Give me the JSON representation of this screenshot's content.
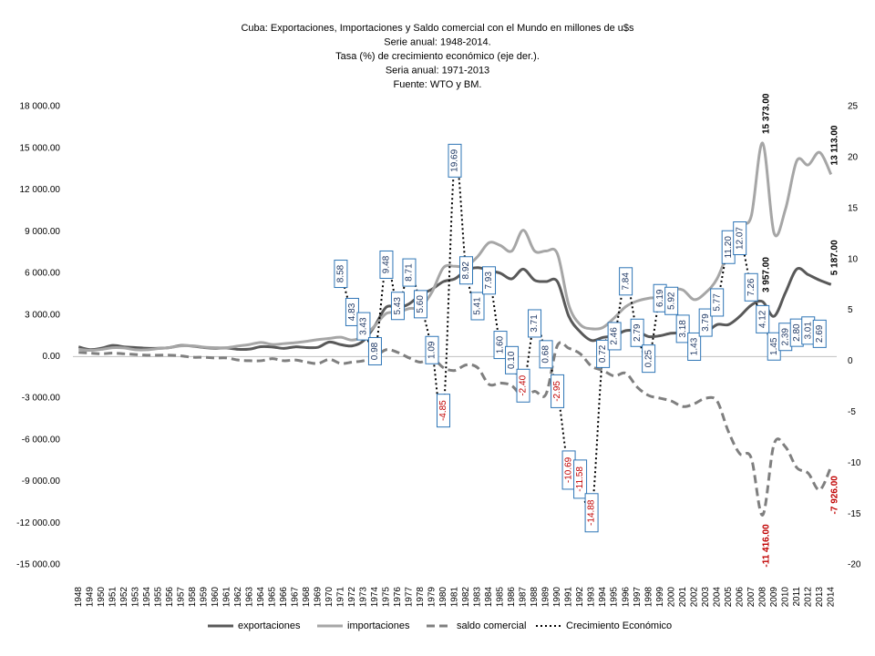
{
  "chart_data": {
    "type": "line",
    "title": [
      "Cuba: Exportaciones, Importaciones y Saldo comercial con el Mundo en millones de u$s",
      "Serie anual: 1948-2014.",
      "Tasa (%) de crecimiento económico (eje der.).",
      "Seria anual: 1971-2013",
      "Fuente: WTO y BM."
    ],
    "categories": [
      "1948",
      "1949",
      "1950",
      "1951",
      "1952",
      "1953",
      "1954",
      "1955",
      "1956",
      "1957",
      "1958",
      "1959",
      "1960",
      "1961",
      "1962",
      "1963",
      "1964",
      "1965",
      "1966",
      "1967",
      "1968",
      "1969",
      "1970",
      "1971",
      "1972",
      "1973",
      "1974",
      "1975",
      "1976",
      "1977",
      "1978",
      "1979",
      "1980",
      "1981",
      "1982",
      "1983",
      "1984",
      "1985",
      "1986",
      "1987",
      "1988",
      "1989",
      "1990",
      "1991",
      "1992",
      "1993",
      "1994",
      "1995",
      "1996",
      "1997",
      "1998",
      "1999",
      "2000",
      "2001",
      "2002",
      "2003",
      "2004",
      "2005",
      "2006",
      "2007",
      "2008",
      "2009",
      "2010",
      "2011",
      "2012",
      "2013",
      "2014"
    ],
    "ylim": [
      -15000,
      18000
    ],
    "yticks": [
      {
        "value": -15000,
        "label": "-15 000.00"
      },
      {
        "value": -12000,
        "label": "-12 000.00"
      },
      {
        "value": -9000,
        "label": "-9 000.00"
      },
      {
        "value": -6000,
        "label": "-6 000.00"
      },
      {
        "value": -3000,
        "label": "-3 000.00"
      },
      {
        "value": 0,
        "label": "0.00"
      },
      {
        "value": 3000,
        "label": "3 000.00"
      },
      {
        "value": 6000,
        "label": "6 000.00"
      },
      {
        "value": 9000,
        "label": "9 000.00"
      },
      {
        "value": 12000,
        "label": "12 000.00"
      },
      {
        "value": 15000,
        "label": "15 000.00"
      },
      {
        "value": 18000,
        "label": "18 000.00"
      }
    ],
    "y2lim": [
      -20,
      25
    ],
    "y2ticks": [
      -20,
      -15,
      -10,
      -5,
      0,
      5,
      10,
      15,
      20,
      25
    ],
    "legend": "bottom",
    "series": [
      {
        "name": "exportaciones",
        "color": "#595959",
        "dash": "solid",
        "values": [
          700,
          500,
          600,
          800,
          700,
          650,
          600,
          600,
          650,
          800,
          750,
          650,
          600,
          620,
          520,
          540,
          710,
          690,
          590,
          700,
          650,
          670,
          1050,
          860,
          770,
          1150,
          2240,
          3570,
          3500,
          3800,
          4450,
          4850,
          5400,
          5600,
          6200,
          6400,
          6200,
          6000,
          5600,
          6300,
          5500,
          5400,
          5400,
          2900,
          1780,
          1160,
          1380,
          1500,
          1870,
          1820,
          1440,
          1500,
          1680,
          1660,
          1420,
          1700,
          2300,
          2300,
          2900,
          3700,
          3957,
          2900,
          4600,
          6300,
          5900,
          5500,
          5187
        ],
        "value_labels": [
          null,
          null,
          null,
          null,
          null,
          null,
          null,
          null,
          null,
          null,
          null,
          null,
          null,
          null,
          null,
          null,
          null,
          null,
          null,
          null,
          null,
          null,
          null,
          null,
          null,
          null,
          null,
          null,
          null,
          null,
          null,
          null,
          null,
          null,
          null,
          null,
          null,
          null,
          null,
          null,
          null,
          null,
          null,
          null,
          null,
          null,
          null,
          null,
          null,
          null,
          null,
          null,
          null,
          null,
          null,
          null,
          null,
          null,
          null,
          null,
          "3 957.00",
          null,
          null,
          null,
          null,
          null,
          "5 187.00"
        ]
      },
      {
        "name": "importaciones",
        "color": "#a6a6a6",
        "dash": "solid",
        "values": [
          530,
          450,
          520,
          640,
          620,
          490,
          490,
          580,
          650,
          770,
          780,
          680,
          640,
          640,
          760,
          870,
          1020,
          870,
          930,
          1000,
          1100,
          1220,
          1310,
          1390,
          1190,
          1460,
          2230,
          3110,
          3180,
          3460,
          3570,
          4650,
          6400,
          6500,
          6500,
          7200,
          8200,
          8000,
          7600,
          9100,
          7600,
          7600,
          7400,
          3700,
          2300,
          2000,
          2100,
          2800,
          3600,
          4000,
          4200,
          4300,
          4800,
          4800,
          4100,
          4600,
          5600,
          7600,
          9500,
          10100,
          15373,
          8900,
          10600,
          14100,
          13800,
          14700,
          13113
        ],
        "value_labels": [
          null,
          null,
          null,
          null,
          null,
          null,
          null,
          null,
          null,
          null,
          null,
          null,
          null,
          null,
          null,
          null,
          null,
          null,
          null,
          null,
          null,
          null,
          null,
          null,
          null,
          null,
          null,
          null,
          null,
          null,
          null,
          null,
          null,
          null,
          null,
          null,
          null,
          null,
          null,
          null,
          null,
          null,
          null,
          null,
          null,
          null,
          null,
          null,
          null,
          null,
          null,
          null,
          null,
          null,
          null,
          null,
          null,
          null,
          null,
          null,
          "15 373.00",
          null,
          null,
          null,
          null,
          null,
          "13 113.00"
        ]
      },
      {
        "name": "saldo comercial",
        "color": "#7f7f7f",
        "dash": "dashed",
        "values": [
          300,
          250,
          200,
          250,
          200,
          150,
          100,
          100,
          100,
          50,
          -50,
          -50,
          -100,
          -100,
          -250,
          -300,
          -300,
          -150,
          -300,
          -250,
          -400,
          -500,
          -200,
          -500,
          -400,
          -300,
          0,
          500,
          300,
          -100,
          -400,
          -100,
          -800,
          -1000,
          -600,
          -800,
          -2000,
          -1900,
          -2100,
          -2900,
          -2500,
          -2700,
          800,
          600,
          200,
          -700,
          -1000,
          -1400,
          -1200,
          -2200,
          -2800,
          -3000,
          -3200,
          -3600,
          -3400,
          -3000,
          -3200,
          -5400,
          -7000,
          -7300,
          -11416,
          -6300,
          -6500,
          -8000,
          -8400,
          -9600,
          -7926
        ],
        "value_labels": [
          null,
          null,
          null,
          null,
          null,
          null,
          null,
          null,
          null,
          null,
          null,
          null,
          null,
          null,
          null,
          null,
          null,
          null,
          null,
          null,
          null,
          null,
          null,
          null,
          null,
          null,
          null,
          null,
          null,
          null,
          null,
          null,
          null,
          null,
          null,
          null,
          null,
          null,
          null,
          null,
          null,
          null,
          null,
          null,
          null,
          null,
          null,
          null,
          null,
          null,
          null,
          null,
          null,
          null,
          null,
          null,
          null,
          null,
          null,
          null,
          "-11 416.00",
          null,
          null,
          null,
          null,
          null,
          "-7 926.00"
        ]
      },
      {
        "name": "Crecimiento Económico",
        "color": "#000000",
        "dash": "dotted",
        "axis": "y2",
        "values": [
          null,
          null,
          null,
          null,
          null,
          null,
          null,
          null,
          null,
          null,
          null,
          null,
          null,
          null,
          null,
          null,
          null,
          null,
          null,
          null,
          null,
          null,
          null,
          8.58,
          4.83,
          3.43,
          0.98,
          9.48,
          5.43,
          8.71,
          5.6,
          1.09,
          -4.85,
          19.69,
          8.92,
          5.41,
          7.93,
          1.6,
          0.1,
          -2.4,
          3.71,
          0.68,
          -2.95,
          -10.69,
          -11.58,
          -14.88,
          0.72,
          2.46,
          7.84,
          2.79,
          0.25,
          6.19,
          5.92,
          3.18,
          1.43,
          3.79,
          5.77,
          11.2,
          12.07,
          7.26,
          4.12,
          1.45,
          2.39,
          2.8,
          3.01,
          2.69,
          null
        ],
        "value_labels": [
          null,
          null,
          null,
          null,
          null,
          null,
          null,
          null,
          null,
          null,
          null,
          null,
          null,
          null,
          null,
          null,
          null,
          null,
          null,
          null,
          null,
          null,
          null,
          "8.58",
          "4.83",
          "3.43",
          "0.98",
          "9.48",
          "5.43",
          "8.71",
          "5.60",
          "1.09",
          "-4.85",
          "19.69",
          "8.92",
          "5.41",
          "7.93",
          "1.60",
          "0.10",
          "-2.40",
          "3.71",
          "0.68",
          "-2.95",
          "-10.69",
          "-11.58",
          "-14.88",
          "0.72",
          "2.46",
          "7.84",
          "2.79",
          "0.25",
          "6.19",
          "5.92",
          "3.18",
          "1.43",
          "3.79",
          "5.77",
          "11.20",
          "12.07",
          "7.26",
          "4.12",
          "1.45",
          "2.39",
          "2.80",
          "3.01",
          "2.69",
          null
        ]
      }
    ]
  }
}
